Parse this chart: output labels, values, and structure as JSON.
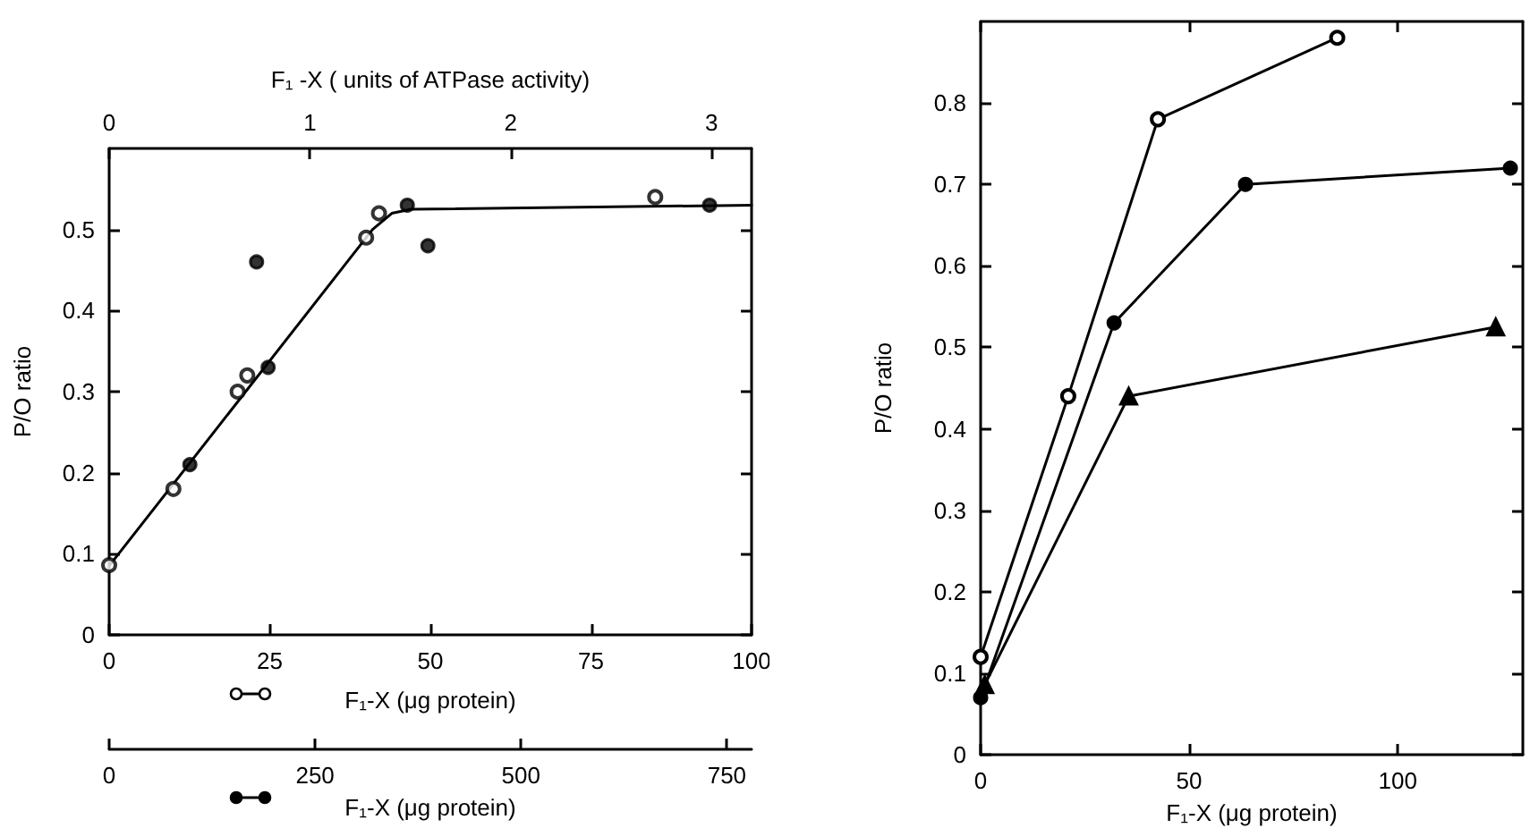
{
  "chart_data": [
    {
      "type": "scatter",
      "xlabel": "F₁-X (μg protein)",
      "x2label": "F₁ -X ( units of ATPase activity)",
      "ylabel": "P/O ratio",
      "xlim": [
        0,
        100
      ],
      "xticks": [
        0,
        25,
        50,
        75,
        100
      ],
      "x2lim": [
        0,
        3.2
      ],
      "x2ticks": [
        0,
        1,
        2,
        3
      ],
      "ylim": [
        0,
        0.6
      ],
      "yticks": [
        0,
        0.1,
        0.2,
        0.3,
        0.4,
        0.5
      ],
      "grid": false,
      "series": [
        {
          "color": "#000000",
          "marker": "circle",
          "x": [
            0,
            10,
            20,
            21.5,
            40,
            42,
            85
          ],
          "values": [
            0.086,
            0.18,
            0.3,
            0.32,
            0.49,
            0.52,
            0.54
          ]
        },
        {
          "type": "line",
          "color": "#000000",
          "marker": "none",
          "x": [
            0,
            41,
            44,
            47,
            100
          ],
          "values": [
            0.085,
            0.5,
            0.52,
            0.525,
            0.53
          ]
        }
      ]
    },
    {
      "type": "scatter",
      "xlabel": "F₁-X (μg protein)",
      "xlim": [
        0,
        780
      ],
      "xticks": [
        0,
        250,
        500,
        750
      ],
      "ylim": [
        0,
        0.6
      ],
      "tick_labels": "x",
      "series": [
        {
          "color": "#000000",
          "marker": "circle",
          "x": [
            98,
            179,
            193,
            362,
            387,
            729
          ],
          "values": [
            0.21,
            0.46,
            0.33,
            0.53,
            0.48,
            0.53
          ]
        }
      ]
    },
    {
      "type": "line",
      "xlabel": "F₁-X (μg protein)",
      "ylabel": "P/O ratio",
      "xlim": [
        0,
        130
      ],
      "xticks": [
        0,
        50,
        100
      ],
      "ylim": [
        0,
        0.9
      ],
      "yticks": [
        0,
        0.1,
        0.2,
        0.3,
        0.4,
        0.5,
        0.6,
        0.7,
        0.8
      ],
      "grid": false,
      "series": [
        {
          "color": "#000000",
          "marker": "circle",
          "x": [
            0,
            21,
            42.5,
            85.5
          ],
          "values": [
            0.12,
            0.44,
            0.78,
            0.88
          ]
        },
        {
          "color": "#000000",
          "marker": "circle",
          "x": [
            0,
            32,
            63.5,
            127
          ],
          "values": [
            0.07,
            0.53,
            0.7,
            0.72
          ]
        },
        {
          "color": "#000000",
          "marker": "triangle",
          "x": [
            1,
            35.5,
            123.5
          ],
          "values": [
            0.086,
            0.44,
            0.525
          ]
        }
      ]
    }
  ]
}
